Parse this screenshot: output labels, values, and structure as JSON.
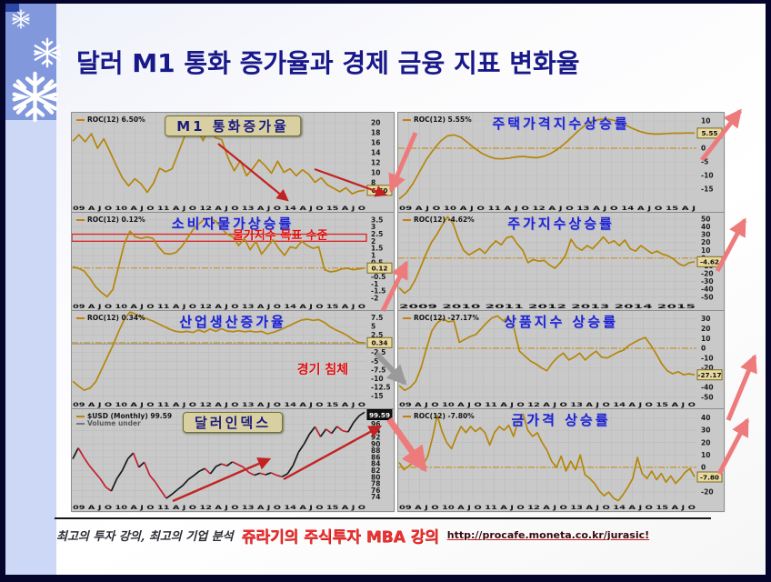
{
  "slide": {
    "title": "달러 M1 통화 증가율과 경제 금융 지표 변화율",
    "footer": {
      "tagline": "최고의 투자 강의, 최고의 기업 분석",
      "course": "쥬라기의 주식투자 MBA 강의",
      "url": "http://procafe.moneta.co.kr/jurasic!"
    },
    "colors": {
      "title_navy": "#181889",
      "chart_line_gold": "#b5860b",
      "chart_title_blue": "#2121cc",
      "annotation_red": "#e01010",
      "sidebar_blue": "#8298dc",
      "sidebar_light_blue": "#ccd8f6",
      "chart_bg_gray": "#c9c9c9"
    }
  },
  "chart_data": [
    {
      "type": "line",
      "title": "M1 통화증가율",
      "boxed_title": true,
      "legend": "ROC(12) 6.50%",
      "legend2": null,
      "xaxis": "09 A J O 10 A J O 11 A J O 12 A J O 13 A J O 14 A J O 15 A J O",
      "ylim": [
        4,
        22
      ],
      "yticks": [
        20,
        18,
        16,
        14,
        12,
        10,
        8
      ],
      "last_value": "6.50",
      "last_value_num": 6.5,
      "baseline": null,
      "zero_line": null,
      "band": null,
      "box_style": "light",
      "color": "#b5860b",
      "annotations": [],
      "series": [
        16.3,
        17.6,
        16.2,
        17.8,
        14.9,
        16.8,
        14.2,
        11.5,
        9.0,
        7.4,
        8.8,
        7.8,
        6.1,
        7.9,
        10.9,
        10.2,
        10.8,
        14.0,
        17.2,
        21.3,
        18.9,
        16.4,
        19.4,
        17.0,
        16.6,
        13.0,
        10.4,
        12.4,
        9.4,
        10.9,
        12.6,
        11.4,
        9.9,
        12.3,
        10.1,
        10.8,
        9.4,
        10.6,
        9.7,
        8.1,
        9.0,
        7.6,
        6.9,
        6.2,
        7.0,
        5.8,
        6.3,
        6.5
      ]
    },
    {
      "type": "line",
      "title": "주택가격지수상승률",
      "boxed_title": false,
      "legend": "ROC(12) 5.55%",
      "legend2": null,
      "xaxis": "09 A J O 10 A J O 11 A J O 12 A J O 13 A J O 14 A J O 15 A J",
      "ylim": [
        -20,
        13
      ],
      "yticks": [
        10,
        0,
        -5,
        -10,
        -15
      ],
      "last_value": "5.55",
      "last_value_num": 5.55,
      "baseline": 0,
      "zero_line": null,
      "band": null,
      "box_style": "light",
      "color": "#b5860b",
      "annotations": [],
      "series": [
        -18.6,
        -16.5,
        -13.0,
        -8.5,
        -4.0,
        -0.5,
        2.5,
        4.5,
        4.9,
        4.0,
        2.0,
        0.0,
        -1.8,
        -3.0,
        -3.8,
        -3.9,
        -3.6,
        -3.2,
        -3.0,
        -3.3,
        -3.5,
        -3.0,
        -2.0,
        -0.5,
        1.5,
        3.8,
        6.2,
        8.3,
        9.8,
        10.5,
        10.7,
        10.4,
        9.6,
        8.4,
        7.2,
        6.2,
        5.5,
        5.2,
        5.2,
        5.4,
        5.5,
        5.5,
        5.6,
        5.55
      ]
    },
    {
      "type": "line",
      "title": "소비자물가상승률",
      "boxed_title": false,
      "legend": "ROC(12) 0.12%",
      "legend2": null,
      "xaxis": "09 A J O 10 A J O 11 A J O 12 A J O 13 A J O 14 A J O 15 A J O",
      "ylim": [
        -2.2,
        4.0
      ],
      "yticks": [
        3.5,
        3.0,
        2.5,
        2.0,
        1.5,
        1.0,
        0.5,
        -0.5,
        -1.0,
        -1.5,
        -2.0
      ],
      "last_value": "0.12",
      "last_value_num": 0.12,
      "baseline": 0.12,
      "zero_line": null,
      "band": [
        2.0,
        2.5
      ],
      "box_style": "light",
      "color": "#b5860b",
      "annotations": [
        {
          "text": "물가지수 목표 수준",
          "x": 0.5,
          "y": 0.13,
          "color": "#e01010",
          "size": 13
        }
      ],
      "series": [
        0.2,
        0.1,
        -0.1,
        -0.6,
        -1.2,
        -1.6,
        -1.9,
        -1.4,
        0.2,
        1.8,
        2.7,
        2.3,
        2.2,
        2.3,
        2.2,
        1.6,
        1.15,
        1.1,
        1.2,
        1.6,
        2.2,
        2.8,
        3.2,
        3.55,
        3.6,
        3.4,
        2.9,
        2.5,
        2.3,
        1.7,
        2.2,
        1.4,
        2.0,
        1.1,
        1.6,
        2.1,
        1.5,
        1.0,
        1.6,
        1.5,
        2.0,
        1.7,
        1.5,
        1.6,
        0.0,
        -0.15,
        -0.1,
        0.05,
        0.1,
        0.0,
        0.05,
        0.12
      ]
    },
    {
      "type": "line",
      "title": "주가지수상승률",
      "boxed_title": false,
      "legend": "ROC(12) -4.62%",
      "legend2": null,
      "xaxis": "2009        2010        2011        2012        2013        2014        2015",
      "ylim": [
        -55,
        58
      ],
      "yticks": [
        50,
        40,
        30,
        20,
        10,
        0,
        -10,
        -20,
        -30,
        -40,
        -50
      ],
      "last_value": "-4.62",
      "last_value_num": -4.62,
      "baseline": 0,
      "zero_line": null,
      "band": null,
      "box_style": "light",
      "color": "#b5860b",
      "annotations": [],
      "series": [
        -38,
        -45,
        -40,
        -28,
        -12,
        5,
        20,
        30,
        42,
        53,
        45,
        25,
        10,
        4,
        8,
        12,
        6,
        15,
        22,
        17,
        26,
        28,
        18,
        10,
        -6,
        -2,
        -4,
        -3,
        -9,
        -13,
        -6,
        4,
        24,
        14,
        10,
        16,
        12,
        19,
        27,
        19,
        22,
        16,
        23,
        12,
        9,
        16,
        11,
        6,
        9,
        5,
        3,
        -1,
        -7,
        -10,
        -6,
        -4.62
      ]
    },
    {
      "type": "line",
      "title": "산업생산증가율",
      "boxed_title": false,
      "legend": "ROC(12) 0.34%",
      "legend2": null,
      "xaxis": "09 A J O 10 A J O 11 A J O 12 A J O 13 A J O 14 A J O 15 A J O",
      "ylim": [
        -16,
        9.5
      ],
      "yticks": [
        7.5,
        5.0,
        2.5,
        -2.5,
        -5.0,
        -7.5,
        -10.0,
        -12.5,
        -15.0
      ],
      "last_value": "0.34",
      "last_value_num": 0.34,
      "baseline": 0.34,
      "zero_line": 0,
      "band": null,
      "box_style": "light",
      "color": "#b5860b",
      "annotations": [
        {
          "text": "경기 침체",
          "x": 0.7,
          "y": 0.5,
          "color": "#e01010",
          "size": 14
        }
      ],
      "series": [
        -10.8,
        -12.2,
        -13.4,
        -12.8,
        -11.0,
        -7.5,
        -4.0,
        -0.5,
        3.5,
        7.0,
        9.2,
        8.6,
        7.8,
        7.2,
        6.6,
        5.8,
        5.0,
        4.2,
        3.6,
        3.4,
        3.6,
        3.3,
        4.0,
        3.4,
        4.3,
        3.6,
        4.4,
        3.7,
        3.5,
        3.8,
        3.5,
        3.7,
        3.4,
        3.6,
        2.9,
        3.3,
        3.9,
        4.6,
        5.4,
        6.2,
        6.9,
        7.1,
        6.8,
        7.0,
        6.2,
        4.9,
        4.0,
        3.3,
        2.4,
        1.2,
        0.4,
        0.34
      ]
    },
    {
      "type": "line",
      "title": "상품지수 상승률",
      "boxed_title": false,
      "legend": "ROC(12) -27.17%",
      "legend2": null,
      "xaxis": "09 A J O 10 A J O 11 A J O 12 A J O 13 A J O 14 A J O 15 A J O",
      "ylim": [
        -52,
        38
      ],
      "yticks": [
        30,
        20,
        10,
        0,
        -10,
        -20,
        -40,
        -50
      ],
      "last_value": "-27.17",
      "last_value_num": -27.17,
      "baseline": 0,
      "zero_line": null,
      "band": null,
      "box_style": "light",
      "color": "#b5860b",
      "annotations": [],
      "series": [
        -38,
        -43,
        -40,
        -34,
        -20,
        0,
        18,
        26,
        30,
        27,
        28,
        6,
        9,
        12,
        14,
        20,
        26,
        31,
        33,
        28,
        32,
        20,
        -3,
        -8,
        -13,
        -16,
        -20,
        -23,
        -15,
        -9,
        -5,
        -12,
        -9,
        -5,
        -12,
        -7,
        -3,
        -9,
        -10,
        -7,
        -4,
        -2,
        3,
        6,
        9,
        11,
        3,
        -6,
        -16,
        -23,
        -26,
        -24,
        -27,
        -26,
        -27.17
      ]
    },
    {
      "type": "line",
      "title": "달러인덱스",
      "boxed_title": true,
      "legend": "$USD (Monthly) 99.59",
      "legend2": "Volume under",
      "xaxis": "09 A J O 10 A J O 11 A J O 12 A J O 13 A J O 14 A J O 15 A J O",
      "ylim": [
        72.5,
        100.5
      ],
      "yticks": [
        98,
        96,
        94,
        92,
        90,
        88,
        86,
        84,
        82,
        80,
        78,
        76,
        74
      ],
      "last_value": "99.59",
      "last_value_num": 99.59,
      "baseline": null,
      "zero_line": null,
      "band": null,
      "box_style": "dark",
      "two_tone": true,
      "color_up": "#1a1a1a",
      "color_down": "#c42030",
      "color": "#1a1a1a",
      "annotations": [],
      "series": [
        85.5,
        88.8,
        86.0,
        83.5,
        81.5,
        79.5,
        77.0,
        75.8,
        79.5,
        82.0,
        85.5,
        87.3,
        83.0,
        84.5,
        80.5,
        78.5,
        76.0,
        73.6,
        74.8,
        76.2,
        77.5,
        79.3,
        80.5,
        81.8,
        82.6,
        81.0,
        83.2,
        84.0,
        83.4,
        84.6,
        83.8,
        83.0,
        81.4,
        80.6,
        81.2,
        80.7,
        81.3,
        80.6,
        80.1,
        81.0,
        83.5,
        87.5,
        90.0,
        93.0,
        95.2,
        92.2,
        94.5,
        93.2,
        95.3,
        94.0,
        93.6,
        96.5,
        98.5,
        99.59
      ]
    },
    {
      "type": "line",
      "title": "금가격 상승률",
      "boxed_title": false,
      "legend": "ROC(12) -7.80%",
      "legend2": null,
      "xaxis": "09 A J O 10 A J O 11 A J O 12 A J O 13 A J O 14 A J O 15 A J O",
      "ylim": [
        -28,
        47
      ],
      "yticks": [
        40,
        30,
        20,
        10,
        0,
        -10,
        -20
      ],
      "last_value": "-7.80",
      "last_value_num": -7.8,
      "baseline": 0,
      "zero_line": null,
      "band": null,
      "box_style": "light",
      "color": "#b5860b",
      "annotations": [],
      "series": [
        4,
        -2,
        1,
        4,
        6,
        2,
        9,
        24,
        42,
        29,
        20,
        15,
        25,
        33,
        28,
        33,
        29,
        32,
        28,
        18,
        28,
        33,
        30,
        34,
        25,
        38,
        43,
        30,
        25,
        28,
        20,
        14,
        5,
        0,
        9,
        -3,
        5,
        -2,
        10,
        -6,
        -9,
        -13,
        -19,
        -23,
        -20,
        -25,
        -27,
        -22,
        -16,
        -9,
        8,
        -5,
        -9,
        -3,
        -10,
        -5,
        -12,
        -7,
        -13,
        -9,
        -4,
        -1,
        -7.8
      ]
    }
  ]
}
